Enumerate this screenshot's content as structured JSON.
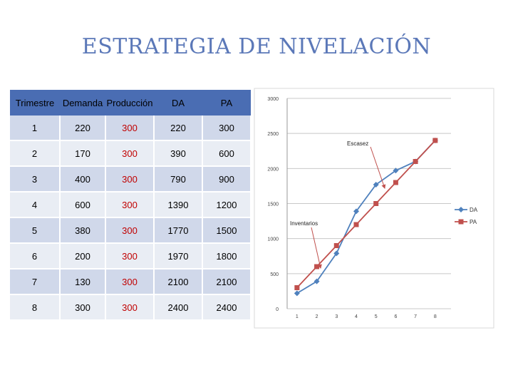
{
  "title": "ESTRATEGIA DE NIVELACIÓN",
  "table": {
    "headers": [
      "Trimestre",
      "Demanda",
      "Producción",
      "DA",
      "PA"
    ],
    "rows": [
      [
        "1",
        "220",
        "300",
        "220",
        "300"
      ],
      [
        "2",
        "170",
        "300",
        "390",
        "600"
      ],
      [
        "3",
        "400",
        "300",
        "790",
        "900"
      ],
      [
        "4",
        "600",
        "300",
        "1390",
        "1200"
      ],
      [
        "5",
        "380",
        "300",
        "1770",
        "1500"
      ],
      [
        "6",
        "200",
        "300",
        "1970",
        "1800"
      ],
      [
        "7",
        "130",
        "300",
        "2100",
        "2100"
      ],
      [
        "8",
        "300",
        "300",
        "2400",
        "2400"
      ]
    ]
  },
  "chart_data": {
    "type": "line",
    "x": [
      1,
      2,
      3,
      4,
      5,
      6,
      7,
      8
    ],
    "series": [
      {
        "name": "DA",
        "values": [
          220,
          390,
          790,
          1390,
          1770,
          1970,
          2100,
          2400
        ],
        "color": "#4f81bd",
        "marker": "diamond"
      },
      {
        "name": "PA",
        "values": [
          300,
          600,
          900,
          1200,
          1500,
          1800,
          2100,
          2400
        ],
        "color": "#c0504d",
        "marker": "square"
      }
    ],
    "ylim": [
      0,
      3000
    ],
    "yticks": [
      0,
      500,
      1000,
      1500,
      2000,
      2500,
      3000
    ],
    "grid": true,
    "legend": "right",
    "annotations": [
      {
        "text": "Escasez",
        "x": 5.5,
        "y": 1750
      },
      {
        "text": "Inventarios",
        "x": 2.4,
        "y": 550
      }
    ]
  }
}
